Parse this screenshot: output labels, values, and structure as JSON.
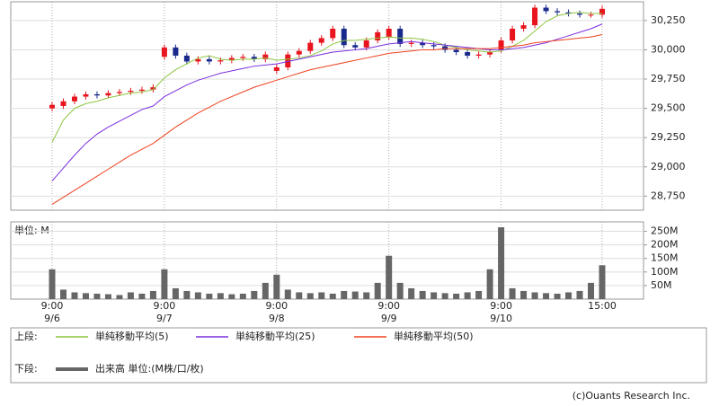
{
  "chart_data": [
    {
      "type": "candlestick",
      "open": [
        29500,
        29520,
        29560,
        29600,
        29620,
        29610,
        29630,
        29640,
        29650,
        29660,
        29940,
        30020,
        29950,
        29900,
        29920,
        29900,
        29910,
        29930,
        29940,
        29920,
        29820,
        29850,
        29960,
        29990,
        30060,
        30100,
        30180,
        30040,
        30020,
        30080,
        30110,
        30180,
        30050,
        30060,
        30040,
        30030,
        30000,
        29980,
        29950,
        29960,
        30000,
        30080,
        30180,
        30210,
        30360,
        30330,
        30320,
        30310,
        30300,
        30300
      ],
      "high": [
        29555,
        29585,
        29625,
        29645,
        29645,
        29655,
        29665,
        29675,
        29685,
        29705,
        30045,
        30045,
        29975,
        29945,
        29945,
        29935,
        29955,
        29965,
        29965,
        29985,
        29875,
        29985,
        30015,
        30085,
        30125,
        30205,
        30205,
        30065,
        30105,
        30175,
        30205,
        30205,
        30085,
        30085,
        30065,
        30055,
        30025,
        30005,
        29985,
        30005,
        30105,
        30205,
        30235,
        30385,
        30385,
        30355,
        30345,
        30335,
        30325,
        30375
      ],
      "low": [
        29475,
        29495,
        29535,
        29575,
        29585,
        29585,
        29605,
        29615,
        29625,
        29635,
        29915,
        29925,
        29875,
        29875,
        29875,
        29875,
        29885,
        29905,
        29895,
        29895,
        29795,
        29825,
        29935,
        29965,
        30035,
        30075,
        30015,
        29995,
        29995,
        30055,
        30085,
        30025,
        30025,
        30015,
        30005,
        29975,
        29955,
        29925,
        29925,
        29935,
        29975,
        30055,
        30155,
        30185,
        30305,
        30295,
        30285,
        30275,
        30275,
        30275
      ],
      "close": [
        29530,
        29560,
        29600,
        29620,
        29610,
        29630,
        29640,
        29650,
        29660,
        29680,
        30020,
        29950,
        29900,
        29920,
        29900,
        29910,
        29930,
        29940,
        29920,
        29960,
        29850,
        29960,
        29990,
        30060,
        30100,
        30180,
        30040,
        30020,
        30080,
        30150,
        30180,
        30050,
        30060,
        30040,
        30030,
        30000,
        29980,
        29950,
        29960,
        29980,
        30080,
        30180,
        30210,
        30360,
        30330,
        30320,
        30310,
        30300,
        30300,
        30350
      ],
      "up_color": "#e8141e",
      "down_color": "#1a2a8c",
      "series": [
        {
          "name": "単純移動平均(5)",
          "color": "#8cc63f",
          "values": [
            29210,
            29400,
            29500,
            29540,
            29560,
            29590,
            29610,
            29630,
            29640,
            29660,
            29760,
            29830,
            29880,
            29930,
            29950,
            29920,
            29910,
            29920,
            29920,
            29930,
            29910,
            29920,
            29930,
            29950,
            29990,
            30050,
            30080,
            30080,
            30090,
            30100,
            30110,
            30100,
            30100,
            30090,
            30070,
            30040,
            30020,
            30000,
            29990,
            29980,
            29990,
            30030,
            30080,
            30160,
            30240,
            30290,
            30310,
            30320,
            30310,
            30310
          ]
        },
        {
          "name": "単純移動平均(25)",
          "color": "#7a2ee0",
          "values": [
            28880,
            28990,
            29100,
            29200,
            29280,
            29340,
            29390,
            29440,
            29490,
            29520,
            29600,
            29650,
            29700,
            29740,
            29770,
            29800,
            29820,
            29840,
            29860,
            29870,
            29880,
            29900,
            29920,
            29940,
            29960,
            29980,
            29990,
            30000,
            30010,
            30030,
            30050,
            30060,
            30070,
            30060,
            30050,
            30040,
            30030,
            30020,
            30010,
            30000,
            30000,
            30010,
            30020,
            30040,
            30060,
            30090,
            30120,
            30150,
            30180,
            30220
          ]
        },
        {
          "name": "単純移動平均(50)",
          "color": "#f0401e",
          "values": [
            28680,
            28740,
            28800,
            28860,
            28920,
            28980,
            29040,
            29100,
            29150,
            29200,
            29270,
            29340,
            29400,
            29460,
            29510,
            29560,
            29600,
            29640,
            29680,
            29710,
            29740,
            29770,
            29800,
            29830,
            29850,
            29870,
            29890,
            29910,
            29930,
            29950,
            29970,
            29980,
            29990,
            30000,
            30000,
            30010,
            30010,
            30010,
            30010,
            30010,
            30020,
            30030,
            30040,
            30060,
            30070,
            30080,
            30090,
            30100,
            30110,
            30130
          ]
        }
      ],
      "ylim": [
        28630,
        30410
      ],
      "yticks": [
        {
          "value": 28750,
          "label": "28,750"
        },
        {
          "value": 29000,
          "label": "29,000"
        },
        {
          "value": 29250,
          "label": "29,250"
        },
        {
          "value": 29500,
          "label": "29,500"
        },
        {
          "value": 29750,
          "label": "29,750"
        },
        {
          "value": 30000,
          "label": "30,000"
        },
        {
          "value": 30250,
          "label": "30,250"
        }
      ],
      "legend_label": "上段:"
    },
    {
      "type": "bar",
      "unit_label": "単位: M",
      "color": "#666666",
      "series": [
        {
          "name": "出来高 単位:(M株/口/枚)",
          "color": "#666666",
          "values": [
            110,
            35,
            25,
            22,
            20,
            18,
            15,
            25,
            20,
            30,
            110,
            40,
            30,
            25,
            20,
            22,
            18,
            20,
            30,
            60,
            90,
            35,
            25,
            22,
            25,
            20,
            30,
            28,
            25,
            60,
            160,
            60,
            40,
            30,
            25,
            22,
            20,
            25,
            30,
            110,
            265,
            40,
            30,
            25,
            22,
            20,
            25,
            30,
            60,
            125
          ]
        }
      ],
      "ylim": [
        0,
        285
      ],
      "yticks": [
        {
          "value": 50,
          "label": "50M"
        },
        {
          "value": 100,
          "label": "100M"
        },
        {
          "value": 150,
          "label": "150M"
        },
        {
          "value": 200,
          "label": "200M"
        },
        {
          "value": 250,
          "label": "250M"
        }
      ],
      "xticks": [
        {
          "value": 0,
          "label": "9:00"
        },
        {
          "value": 10,
          "label": "9:00"
        },
        {
          "value": 20,
          "label": "9:00"
        },
        {
          "value": 30,
          "label": "9:00"
        },
        {
          "value": 40,
          "label": "9:00"
        },
        {
          "value": 49,
          "label": "15:00"
        }
      ],
      "xtick_dates": [
        {
          "value": 0,
          "label": "9/6"
        },
        {
          "value": 10,
          "label": "9/7"
        },
        {
          "value": 20,
          "label": "9/8"
        },
        {
          "value": 30,
          "label": "9/9"
        },
        {
          "value": 40,
          "label": "9/10"
        }
      ],
      "legend_label": "下段:"
    }
  ],
  "copyright": "(c)Ouants Research Inc."
}
